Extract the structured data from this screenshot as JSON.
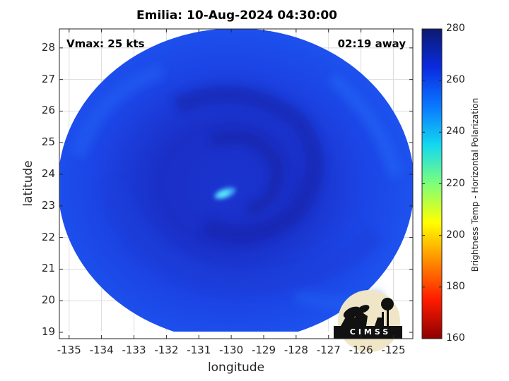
{
  "title": "Emilia: 10-Aug-2024 04:30:00",
  "vmax_label": "Vmax: 25 kts",
  "time_away": "02:19 away",
  "xlabel": "longitude",
  "ylabel": "latitude",
  "x_ticks": [
    "-135",
    "-134",
    "-133",
    "-132",
    "-131",
    "-130",
    "-129",
    "-128",
    "-127",
    "-126",
    "-125"
  ],
  "y_ticks": [
    "28",
    "27",
    "26",
    "25",
    "24",
    "23",
    "22",
    "21",
    "20",
    "19"
  ],
  "colorbar": {
    "label": "Brightness Temp - Horizontal Polarization",
    "ticks": [
      "280",
      "260",
      "240",
      "220",
      "200",
      "180",
      "160"
    ],
    "colors": [
      "#0b1a70",
      "#0a2be0",
      "#0a78ff",
      "#12d8f0",
      "#7dff7a",
      "#ffff00",
      "#ff8c00",
      "#ff1a00",
      "#8c0000"
    ]
  },
  "logo": {
    "text": "CIMSS"
  },
  "colors": {
    "scene_main": "#1a3fe0",
    "scene_dark": "#1424b8",
    "eye_warm": "#58e8f5"
  },
  "chart_data": {
    "type": "heatmap",
    "title": "Emilia: 10-Aug-2024 04:30:00",
    "xlabel": "longitude",
    "ylabel": "latitude",
    "xlim": [
      -135.3,
      -124.4
    ],
    "ylim": [
      18.8,
      28.6
    ],
    "grid": true,
    "colorbar_range": [
      160,
      280
    ],
    "colorbar_label": "Brightness Temp - Horizontal Polarization"
  }
}
